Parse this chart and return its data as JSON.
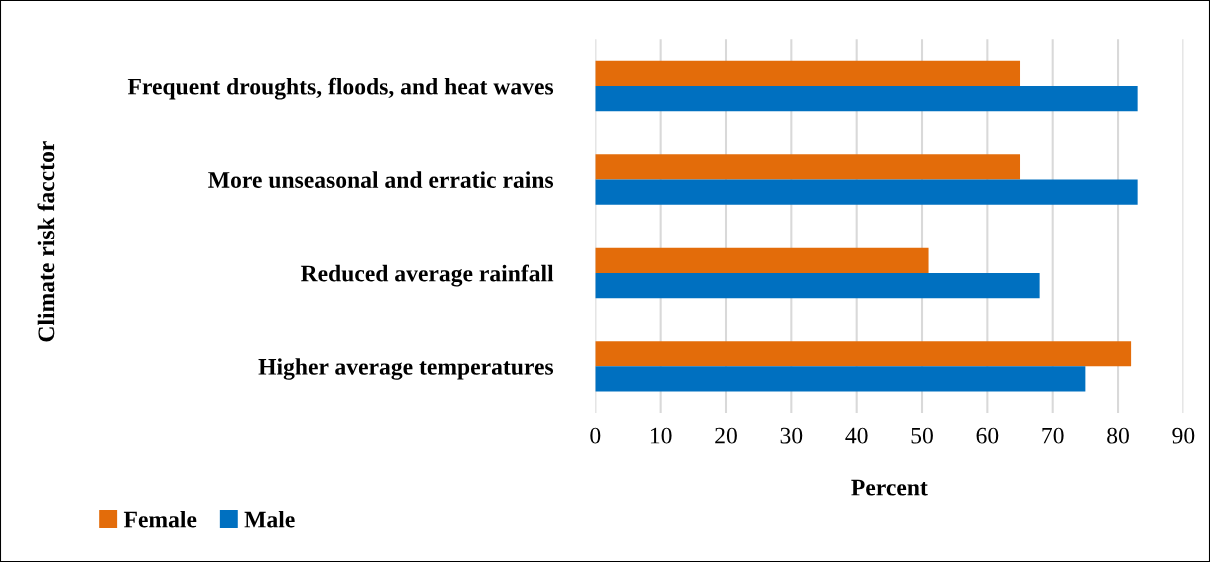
{
  "chart_data": {
    "type": "bar",
    "orientation": "horizontal",
    "categories": [
      "Frequent droughts, floods, and heat waves",
      "More unseasonal and erratic rains",
      "Reduced average rainfall",
      "Higher average temperatures"
    ],
    "series": [
      {
        "name": "Female",
        "color": "#e36c0a",
        "values": [
          65,
          65,
          51,
          82
        ]
      },
      {
        "name": "Male",
        "color": "#0070c0",
        "values": [
          83,
          83,
          68,
          75
        ]
      }
    ],
    "xlabel": "Percent",
    "ylabel": "Climate risk facctor",
    "xlim": [
      0,
      90
    ],
    "xticks": [
      0,
      10,
      20,
      30,
      40,
      50,
      60,
      70,
      80,
      90
    ],
    "grid": "x",
    "legend": "bottom left"
  }
}
